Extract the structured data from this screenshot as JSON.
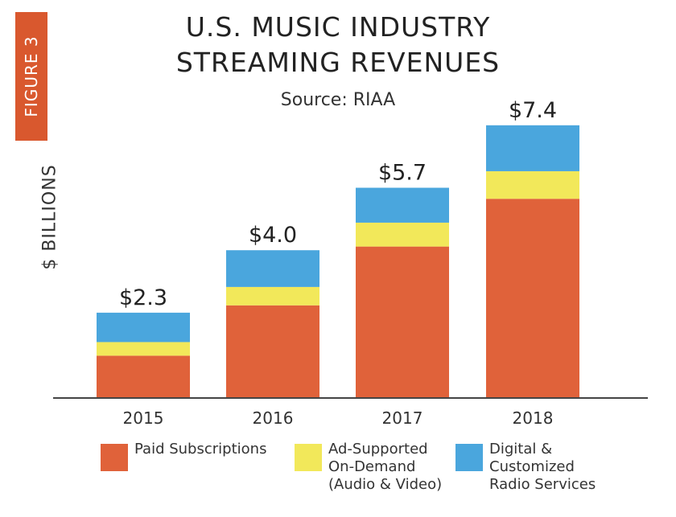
{
  "figure_label": "FIGURE 3",
  "chart_data": {
    "type": "bar",
    "stacked": true,
    "title": "U.S. MUSIC INDUSTRY STREAMING REVENUES",
    "title_lines": [
      "U.S. MUSIC INDUSTRY",
      "STREAMING REVENUES"
    ],
    "subtitle": "Source: RIAA",
    "xlabel": "",
    "ylabel": "$ BILLIONS",
    "ylim": [
      0,
      7.4
    ],
    "grid": false,
    "legend_position": "bottom",
    "categories": [
      "2015",
      "2016",
      "2017",
      "2018"
    ],
    "totals_labels": [
      "$2.3",
      "$4.0",
      "$5.7",
      "$7.4"
    ],
    "series": [
      {
        "name": "Paid Subscriptions",
        "color": "#e0623a",
        "values": [
          1.13,
          2.5,
          4.1,
          5.4
        ]
      },
      {
        "name": "Ad-Supported On-Demand (Audio & Video)",
        "color": "#f2e85a",
        "values": [
          0.37,
          0.5,
          0.65,
          0.75
        ]
      },
      {
        "name": "Digital & Customized Radio Services",
        "color": "#4aa6dd",
        "values": [
          0.8,
          1.0,
          0.95,
          1.25
        ]
      }
    ]
  },
  "legend": [
    {
      "label": "Paid Subscriptions"
    },
    {
      "label": "Ad-Supported\nOn-Demand\n(Audio & Video)"
    },
    {
      "label": "Digital &\nCustomized\nRadio Services"
    }
  ]
}
